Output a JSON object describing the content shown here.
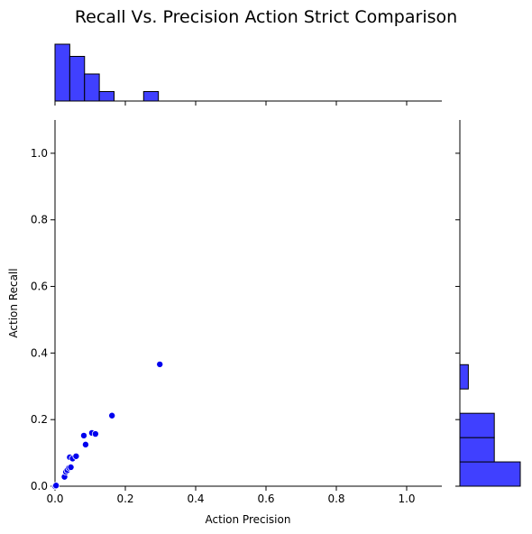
{
  "chart_data": {
    "type": "scatter",
    "title": "Recall Vs. Precision Action Strict Comparison",
    "xlabel": "Action Precision",
    "ylabel": "Action Recall",
    "xlim": [
      0,
      1.1
    ],
    "ylim": [
      0,
      1.1
    ],
    "xticks": [
      "0.0",
      "0.2",
      "0.4",
      "0.6",
      "0.8",
      "1.0"
    ],
    "yticks": [
      "0.0",
      "0.2",
      "0.4",
      "0.6",
      "0.8",
      "1.0"
    ],
    "grid": false,
    "marker_color": "#0000ee",
    "hist_color": "#4040ff",
    "points": [
      {
        "x": 0.0,
        "y": 0.0
      },
      {
        "x": 0.003,
        "y": 0.002
      },
      {
        "x": 0.027,
        "y": 0.028
      },
      {
        "x": 0.031,
        "y": 0.043
      },
      {
        "x": 0.035,
        "y": 0.048
      },
      {
        "x": 0.04,
        "y": 0.055
      },
      {
        "x": 0.045,
        "y": 0.057
      },
      {
        "x": 0.042,
        "y": 0.087
      },
      {
        "x": 0.05,
        "y": 0.083
      },
      {
        "x": 0.06,
        "y": 0.09
      },
      {
        "x": 0.082,
        "y": 0.152
      },
      {
        "x": 0.087,
        "y": 0.125
      },
      {
        "x": 0.105,
        "y": 0.16
      },
      {
        "x": 0.115,
        "y": 0.157
      },
      {
        "x": 0.162,
        "y": 0.212
      },
      {
        "x": 0.298,
        "y": 0.366
      }
    ],
    "top_histogram": {
      "bins": [
        {
          "start": 0.0,
          "end": 0.042,
          "value": 0.42
        },
        {
          "start": 0.042,
          "end": 0.084,
          "value": 0.33
        },
        {
          "start": 0.084,
          "end": 0.126,
          "value": 0.2
        },
        {
          "start": 0.126,
          "end": 0.168,
          "value": 0.07
        },
        {
          "start": 0.168,
          "end": 0.21,
          "value": 0.0
        },
        {
          "start": 0.21,
          "end": 0.252,
          "value": 0.0
        },
        {
          "start": 0.252,
          "end": 0.294,
          "value": 0.07
        }
      ]
    },
    "right_histogram": {
      "bins": [
        {
          "start": 0.0,
          "end": 0.073,
          "value": 1.0
        },
        {
          "start": 0.073,
          "end": 0.146,
          "value": 0.57
        },
        {
          "start": 0.146,
          "end": 0.219,
          "value": 0.57
        },
        {
          "start": 0.219,
          "end": 0.292,
          "value": 0.0
        },
        {
          "start": 0.292,
          "end": 0.365,
          "value": 0.14
        }
      ]
    }
  }
}
